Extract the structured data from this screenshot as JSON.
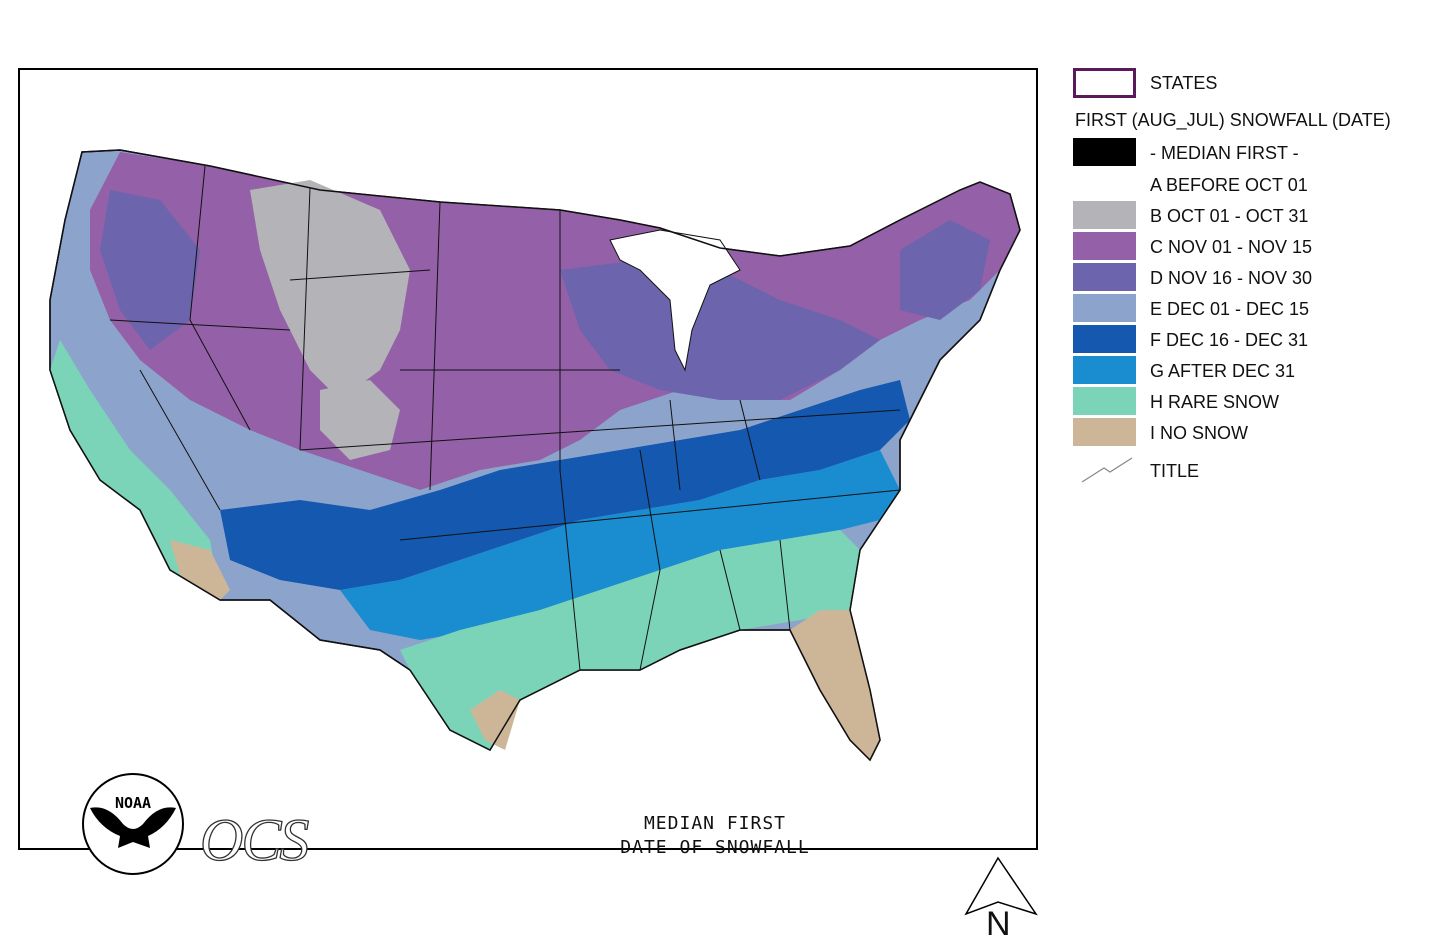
{
  "map": {
    "title_line1": "MEDIAN FIRST",
    "title_line2": "DATE OF SNOWFALL",
    "logo_noaa_text": "NOAA",
    "logo_ocs_text": "OCS",
    "north_label": "N"
  },
  "legend": {
    "states_label": "STATES",
    "heading": "FIRST (AUG_JUL) SNOWFALL (DATE)",
    "median_label": "- MEDIAN FIRST -",
    "classes": [
      {
        "label": "A BEFORE OCT 01",
        "color": "#ffffff"
      },
      {
        "label": "B OCT 01 - OCT 31",
        "color": "#b4b4b8"
      },
      {
        "label": "C NOV 01 - NOV 15",
        "color": "#9460a8"
      },
      {
        "label": "D NOV 16 - NOV 30",
        "color": "#6c64ac"
      },
      {
        "label": "E DEC 01 - DEC 15",
        "color": "#8ca4cc"
      },
      {
        "label": "F DEC 16 - DEC 31",
        "color": "#1458b0"
      },
      {
        "label": "G AFTER DEC 31",
        "color": "#1a8cd0"
      },
      {
        "label": "H RARE SNOW",
        "color": "#7cd4b8"
      },
      {
        "label": "I NO SNOW",
        "color": "#cdb698"
      }
    ],
    "title_label": "TITLE"
  }
}
